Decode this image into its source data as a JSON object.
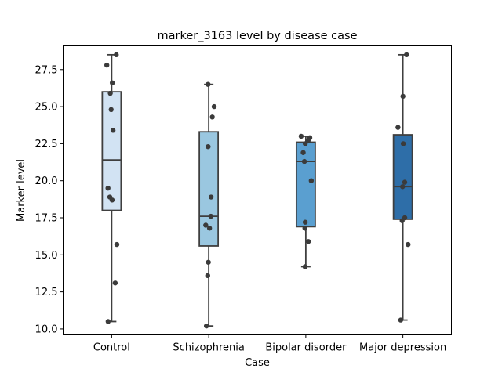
{
  "chart_data": {
    "type": "box",
    "title": "marker_3163 level by disease case",
    "xlabel": "Case",
    "ylabel": "Marker level",
    "ylim": [
      9.6,
      29.1
    ],
    "yticks": [
      10.0,
      12.5,
      15.0,
      17.5,
      20.0,
      22.5,
      25.0,
      27.5
    ],
    "ytick_labels": [
      "10.0",
      "12.5",
      "15.0",
      "17.5",
      "20.0",
      "22.5",
      "25.0",
      "27.5"
    ],
    "grid": false,
    "categories": [
      "Control",
      "Schizophrenia",
      "Bipolar disorder",
      "Major depression"
    ],
    "groups": [
      {
        "name": "Control",
        "color": "#d2e3f3",
        "min": 10.5,
        "q1": 18.0,
        "median": 21.4,
        "q3": 26.0,
        "max": 28.5,
        "points": [
          28.5,
          27.8,
          26.6,
          25.9,
          24.8,
          23.4,
          19.5,
          18.9,
          18.7,
          15.7,
          13.1,
          10.5
        ]
      },
      {
        "name": "Schizophrenia",
        "color": "#9ac7e0",
        "min": 10.2,
        "q1": 15.6,
        "median": 17.6,
        "q3": 23.3,
        "max": 26.5,
        "points": [
          26.5,
          25.0,
          24.3,
          22.3,
          18.9,
          17.6,
          17.0,
          16.8,
          14.5,
          13.6,
          10.2
        ]
      },
      {
        "name": "Bipolar disorder",
        "color": "#5a9fd0",
        "min": 14.2,
        "q1": 16.9,
        "median": 21.3,
        "q3": 22.6,
        "max": 23.0,
        "points": [
          23.0,
          22.9,
          22.7,
          22.5,
          21.9,
          21.3,
          20.0,
          17.2,
          16.8,
          15.9,
          14.2
        ]
      },
      {
        "name": "Major depression",
        "color": "#2e6ea8",
        "min": 10.6,
        "q1": 17.4,
        "median": 19.6,
        "q3": 23.1,
        "max": 28.5,
        "points": [
          28.5,
          25.7,
          23.6,
          22.5,
          19.9,
          19.6,
          17.5,
          17.3,
          15.7,
          10.6
        ]
      }
    ]
  }
}
